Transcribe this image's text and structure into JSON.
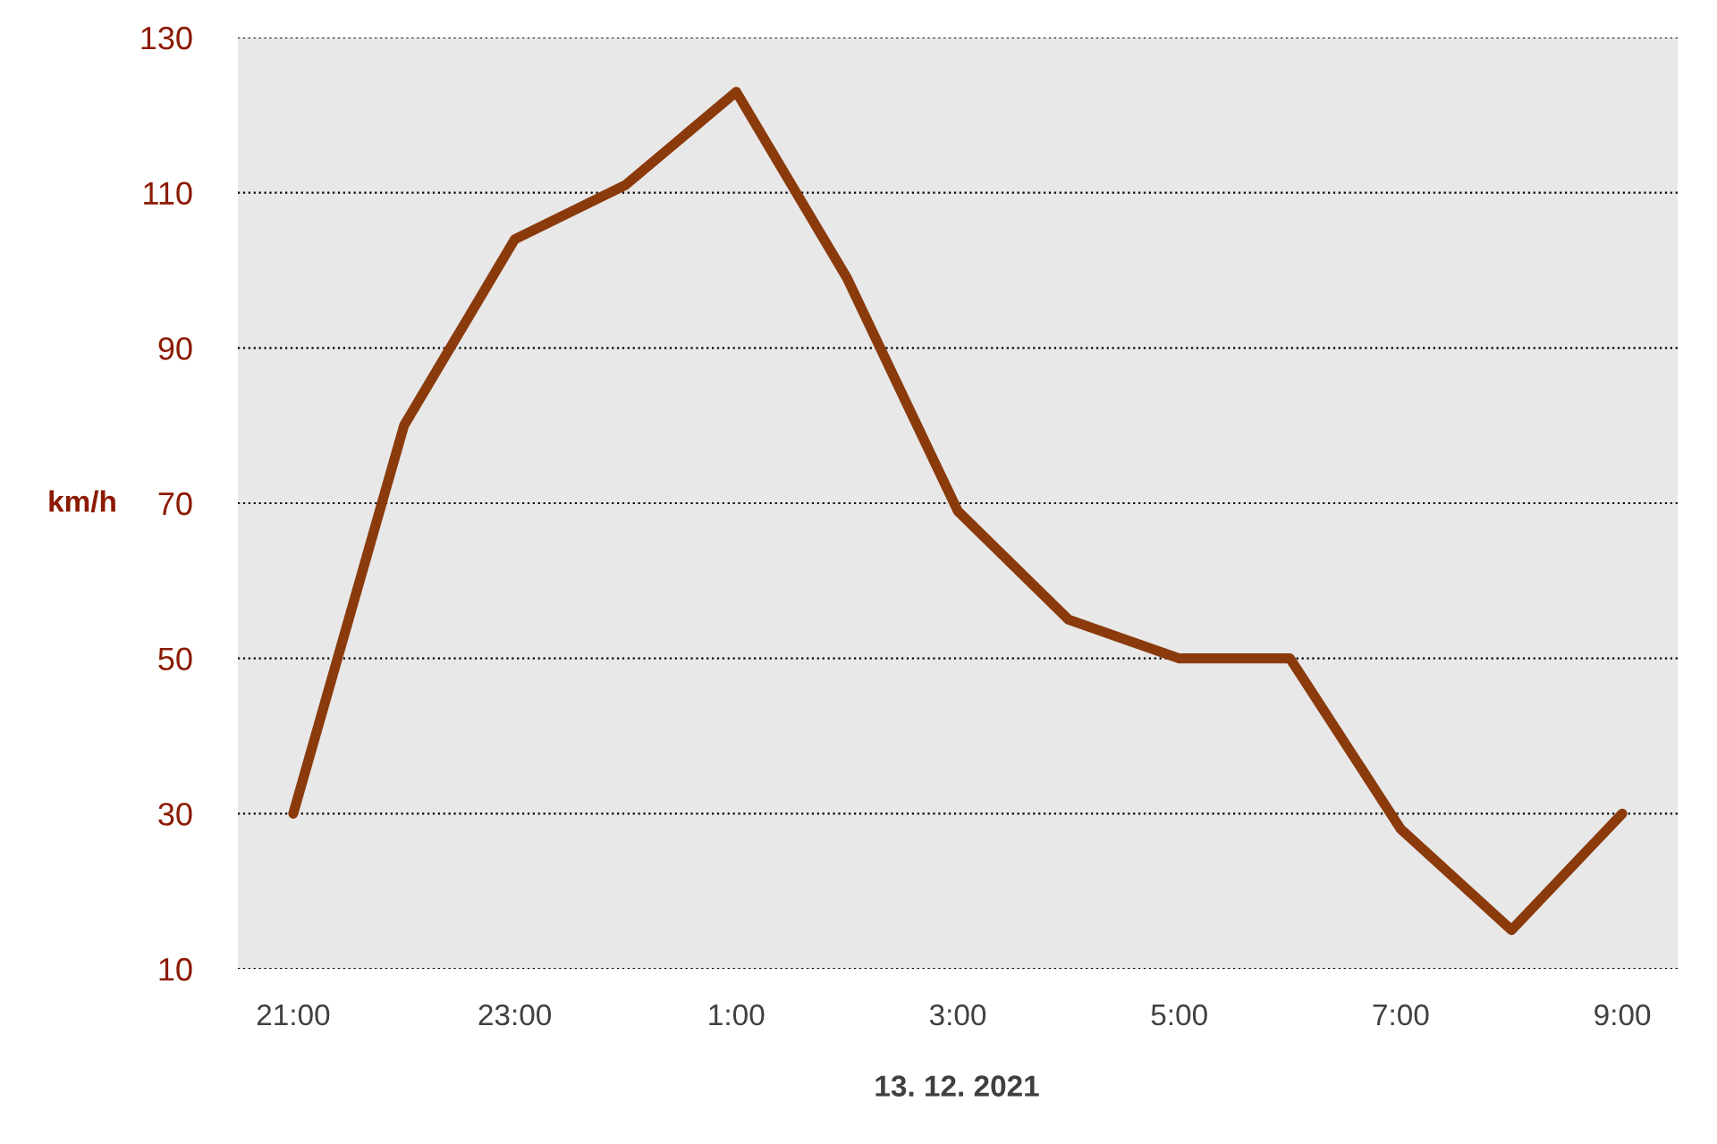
{
  "chart_data": {
    "type": "line",
    "xlabel": "13. 12. 2021",
    "ylabel": "km/h",
    "categories": [
      "21:00",
      null,
      "23:00",
      null,
      "1:00",
      null,
      "3:00",
      null,
      "5:00",
      null,
      "7:00",
      null,
      "9:00"
    ],
    "series": [
      {
        "color": "#8b3a0c",
        "values": [
          30,
          80,
          104,
          111,
          123,
          99,
          69,
          55,
          50,
          50,
          28,
          15,
          30
        ]
      }
    ],
    "ylim": [
      10,
      130
    ],
    "yticks": [
      10,
      30,
      50,
      70,
      90,
      110,
      130
    ],
    "grid": "y",
    "marker": "none",
    "line_style": "solid"
  }
}
